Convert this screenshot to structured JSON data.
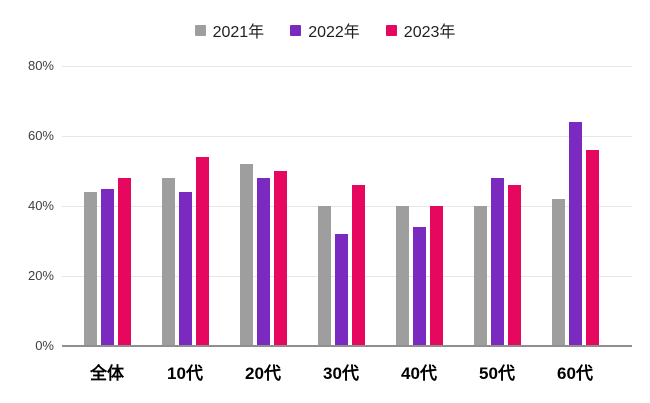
{
  "chart_data": {
    "type": "bar",
    "title": "",
    "categories": [
      "全体",
      "10代",
      "20代",
      "30代",
      "40代",
      "50代",
      "60代"
    ],
    "series": [
      {
        "name": "2021年",
        "color": "#9e9e9e",
        "values": [
          44,
          48,
          52,
          40,
          40,
          40,
          42
        ]
      },
      {
        "name": "2022年",
        "color": "#7b2abf",
        "values": [
          45,
          44,
          48,
          32,
          34,
          48,
          64
        ]
      },
      {
        "name": "2023年",
        "color": "#e6085e",
        "values": [
          48,
          54,
          50,
          46,
          40,
          46,
          56
        ]
      }
    ],
    "xlabel": "",
    "ylabel": "",
    "ylim": [
      0,
      80
    ],
    "y_ticks": [
      {
        "value": 0,
        "label": "0%"
      },
      {
        "value": 20,
        "label": "20%"
      },
      {
        "value": 40,
        "label": "40%"
      },
      {
        "value": 60,
        "label": "60%"
      },
      {
        "value": 80,
        "label": "80%"
      }
    ],
    "grid": true,
    "legend_position": "top"
  }
}
